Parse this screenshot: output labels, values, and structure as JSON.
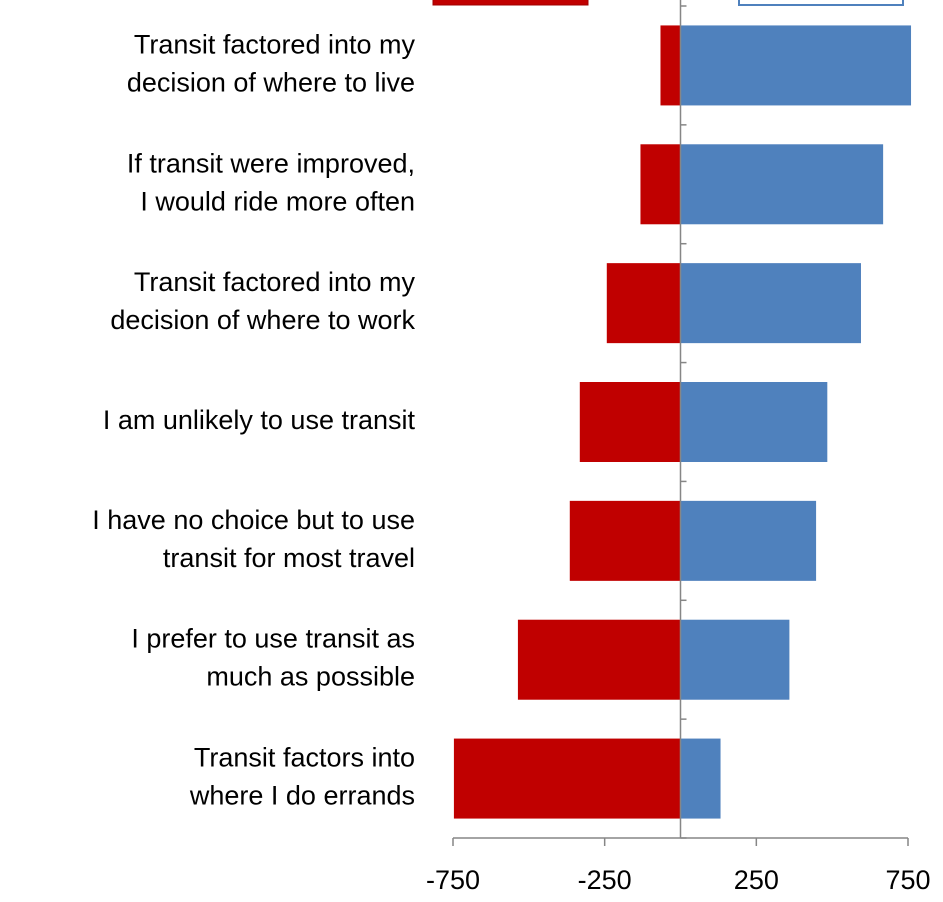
{
  "chart_data": {
    "type": "diverging-bar",
    "categories": [
      [
        "Transit factored into my",
        "decision of where to live"
      ],
      [
        "If transit were improved,",
        "I would ride more often"
      ],
      [
        "Transit factored into my",
        "decision of where to work"
      ],
      [
        "I am unlikely to use transit"
      ],
      [
        "I have no choice but to use",
        "transit for most travel"
      ],
      [
        "I prefer to use transit as",
        "much as possible"
      ],
      [
        "Transit factors into",
        "where I do errands"
      ]
    ],
    "series": [
      {
        "color": "#c00000",
        "values": [
          -66,
          -132,
          -243,
          -332,
          -365,
          -536,
          -747
        ]
      },
      {
        "color": "#4f81bd",
        "values": [
          760,
          668,
          595,
          484,
          447,
          359,
          132
        ]
      }
    ],
    "xlim": [
      -750,
      750
    ],
    "xticks": [
      -750,
      -250,
      250,
      750
    ]
  }
}
